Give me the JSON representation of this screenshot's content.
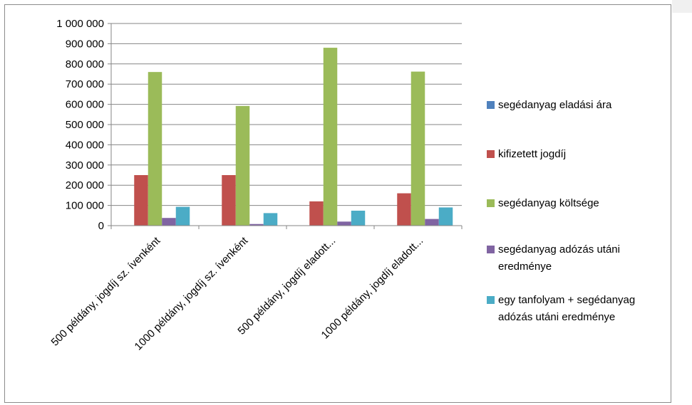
{
  "chart_data": {
    "type": "bar",
    "categories": [
      "500 példány, jogdíj sz. ívenként",
      "1000 példány, jogdíj sz. ívenként",
      "500 példány, jogdíj eladott...",
      "1000 példány, jogdíj eladott..."
    ],
    "series": [
      {
        "name": "segédanyag eladási ára",
        "color": "#4f81bd",
        "values": [
          0,
          0,
          0,
          0
        ]
      },
      {
        "name": "kifizetett jogdíj",
        "color": "#c0504d",
        "values": [
          250000,
          250000,
          120000,
          160000
        ]
      },
      {
        "name": "segédanyag költsége",
        "color": "#9bbb59",
        "values": [
          760000,
          592000,
          880000,
          762000
        ]
      },
      {
        "name": "segédanyag adózás utáni eredménye",
        "color": "#8064a2",
        "values": [
          38000,
          8000,
          20000,
          33000
        ]
      },
      {
        "name": "egy tanfolyam + segédanyag adózás utáni eredménye",
        "color": "#4bacc6",
        "values": [
          93000,
          62000,
          74000,
          90000
        ]
      }
    ],
    "yticks": [
      "0",
      "100 000",
      "200 000",
      "300 000",
      "400 000",
      "500 000",
      "600 000",
      "700 000",
      "800 000",
      "900 000",
      "1 000 000"
    ],
    "ylim": [
      0,
      1000000
    ],
    "grid": true,
    "legend": "right"
  }
}
